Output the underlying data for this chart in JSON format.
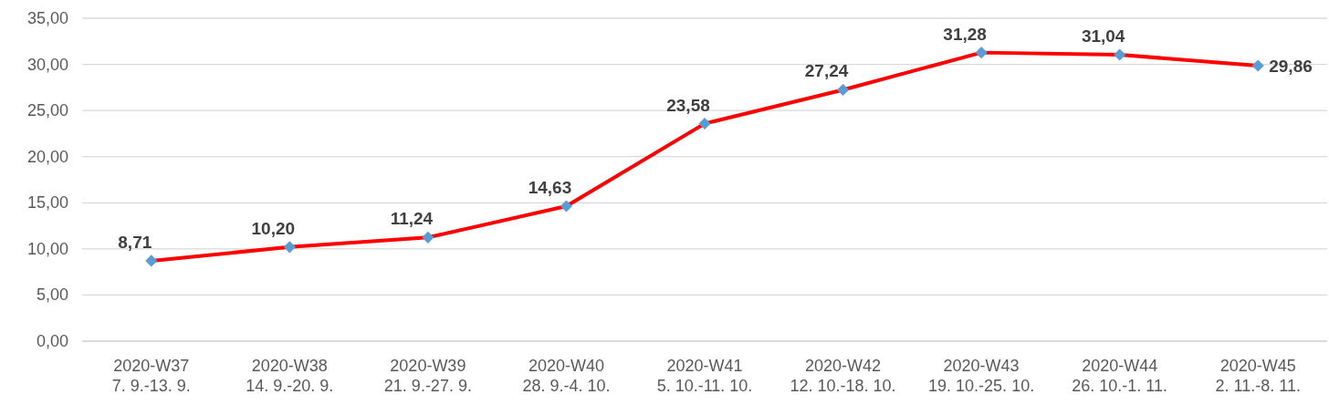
{
  "chart_data": {
    "type": "line",
    "categories": [
      "2020-W37\n7. 9.-13. 9.",
      "2020-W38\n14. 9.-20. 9.",
      "2020-W39\n21. 9.-27. 9.",
      "2020-W40\n28. 9.-4. 10.",
      "2020-W41\n5. 10.-11. 10.",
      "2020-W42\n12. 10.-18. 10.",
      "2020-W43\n19. 10.-25. 10.",
      "2020-W44\n26. 10.-1. 11.",
      "2020-W45\n2. 11.-8. 11."
    ],
    "series": [
      {
        "color": "#ff0000",
        "values": [
          8.71,
          10.2,
          11.24,
          14.63,
          23.58,
          27.24,
          31.28,
          31.04,
          29.86
        ],
        "value_labels": [
          "8,71",
          "10,20",
          "11,24",
          "14,63",
          "23,58",
          "27,24",
          "31,28",
          "31,04",
          "29,86"
        ]
      }
    ],
    "ylim": [
      0,
      35
    ],
    "yticks": [
      {
        "value": 0,
        "label": "0,00"
      },
      {
        "value": 5,
        "label": "5,00"
      },
      {
        "value": 10,
        "label": "10,00"
      },
      {
        "value": 15,
        "label": "15,00"
      },
      {
        "value": 20,
        "label": "20,00"
      },
      {
        "value": 25,
        "label": "25,00"
      },
      {
        "value": 30,
        "label": "30,00"
      },
      {
        "value": 35,
        "label": "35,00"
      }
    ],
    "grid": "y",
    "marker": "diamond",
    "line_style": "solid"
  }
}
